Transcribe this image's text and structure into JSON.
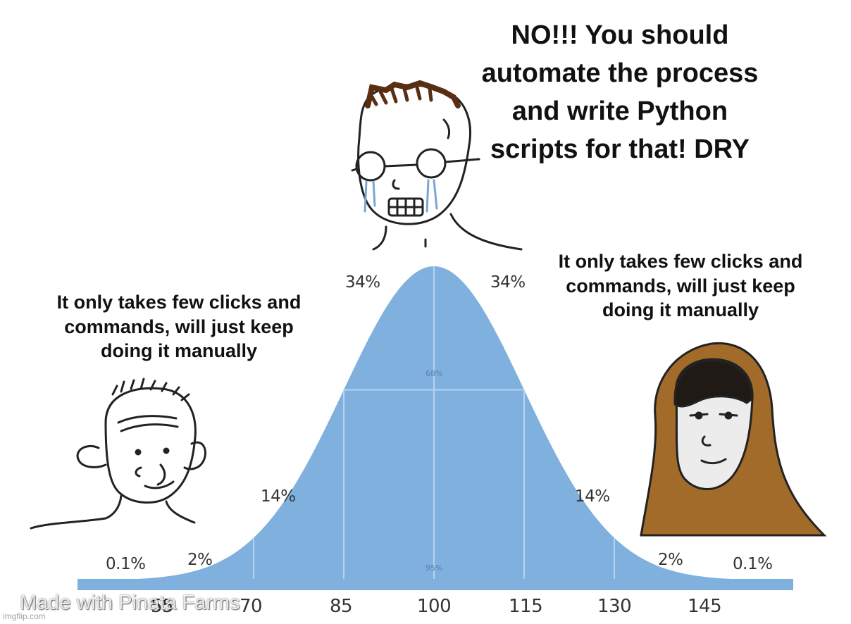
{
  "captions": {
    "top": [
      "NO!!! You should",
      "automate the process",
      "and write Python",
      "scripts for that! DRY"
    ],
    "left": [
      "It only takes few clicks and",
      "commands, will just keep",
      "doing it manually"
    ],
    "right": [
      "It only takes few clicks and",
      "commands, will just keep",
      "doing it manually"
    ]
  },
  "curve": {
    "percent_labels": {
      "far_left": "0.1%",
      "left_2": "2%",
      "left_14": "14%",
      "left_34": "34%",
      "right_34": "34%",
      "right_14": "14%",
      "right_2": "2%",
      "far_right": "0.1%"
    },
    "inner_labels": {
      "band_68": "68%",
      "band_95": "95%"
    },
    "axis_ticks": [
      "55",
      "70",
      "85",
      "100",
      "115",
      "130",
      "145"
    ]
  },
  "watermark": {
    "text": "Made with Pinata Farms",
    "imgflip": "imgflip.com"
  },
  "colors": {
    "curve_fill": "#7fb0de",
    "curve_band_line": "#a9c9ea",
    "baseline": "#7fb0de",
    "hood": "#a26b2a"
  }
}
